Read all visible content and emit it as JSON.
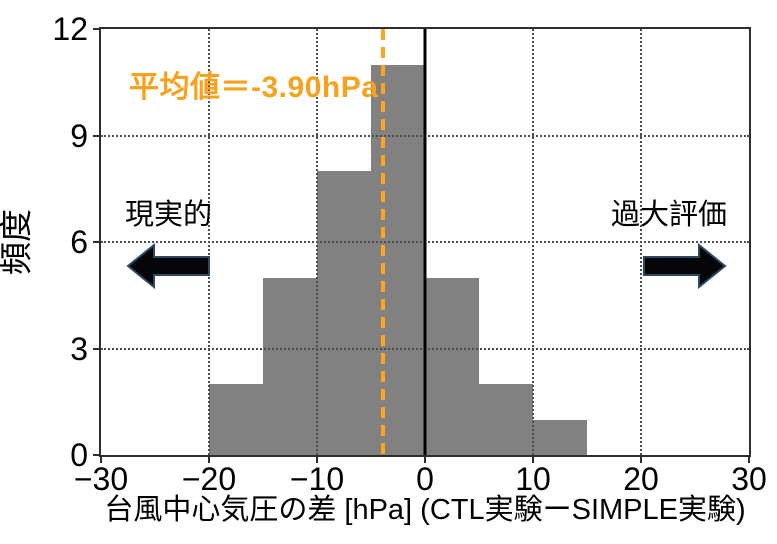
{
  "chart_data": {
    "type": "bar",
    "chart_kind": "histogram",
    "title": "",
    "xlabel": "台風中心気圧の差 [hPa] (CTL実験ーSIMPLE実験)",
    "ylabel": "頻度",
    "xlim": [
      -30,
      30
    ],
    "ylim": [
      0,
      12
    ],
    "x_ticks": [
      -30,
      -20,
      -10,
      0,
      10,
      20,
      30
    ],
    "x_tick_labels": [
      "−30",
      "−20",
      "−10",
      "0",
      "10",
      "20",
      "30"
    ],
    "y_ticks": [
      0,
      3,
      6,
      9,
      12
    ],
    "y_tick_labels": [
      "0",
      "3",
      "6",
      "9",
      "12"
    ],
    "x_gridlines": [
      -20,
      -10,
      10,
      20
    ],
    "y_gridlines": [
      3,
      6,
      9
    ],
    "grid_style": "dotted",
    "legend": false,
    "bin_edges": [
      -20,
      -15,
      -10,
      -5,
      0,
      5,
      10,
      15
    ],
    "counts": [
      2,
      5,
      8,
      11,
      5,
      2,
      1
    ],
    "bar_color": "#818181",
    "mean_line": {
      "x": -3.9,
      "color": "#FFA41E",
      "style": "dashed"
    },
    "zero_line": {
      "x": 0,
      "color": "#000000",
      "style": "solid"
    },
    "annotations": {
      "mean_label": {
        "text": "平均値＝-3.90hPa",
        "color": "#F7A11C"
      },
      "left_label": {
        "text": "現実的",
        "color": "#000000"
      },
      "right_label": {
        "text": "過大評価",
        "color": "#000000"
      }
    },
    "arrow_style": {
      "fill": "#060608",
      "stroke": "#2E4A62"
    }
  }
}
